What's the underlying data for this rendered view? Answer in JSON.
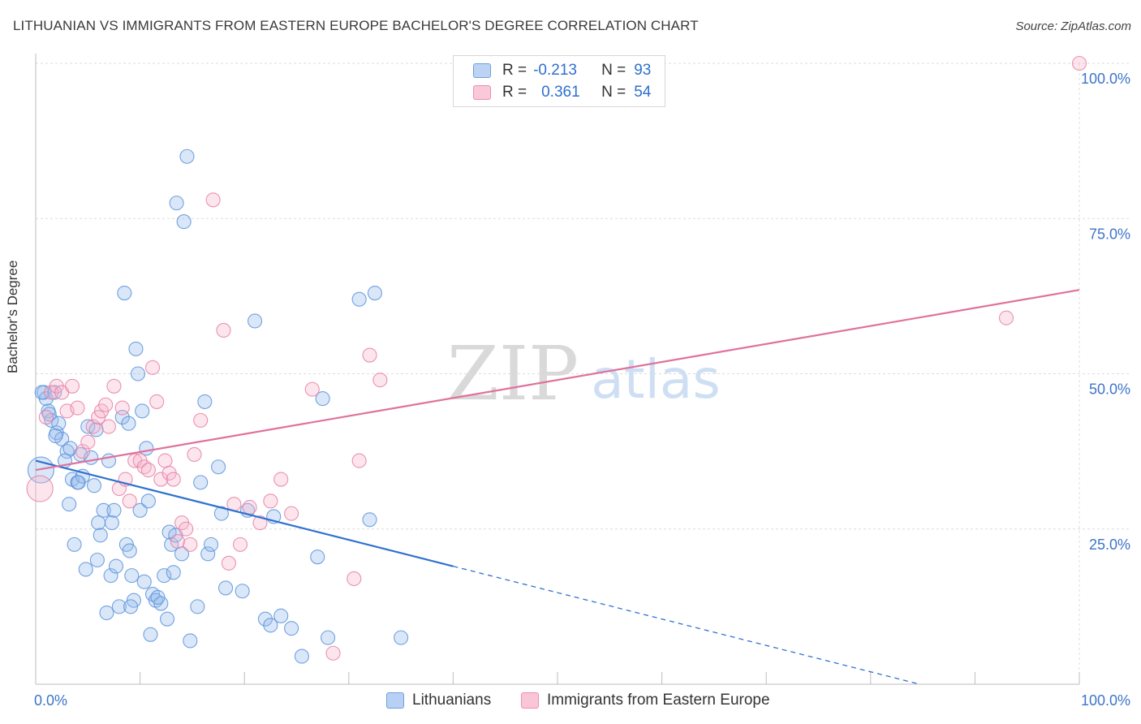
{
  "title": "LITHUANIAN VS IMMIGRANTS FROM EASTERN EUROPE BACHELOR'S DEGREE CORRELATION CHART",
  "source": "Source: ZipAtlas.com",
  "watermark": {
    "zip": "ZIP",
    "atlas": "atlas"
  },
  "legend": {
    "r_label": "R =",
    "n_label": "N =",
    "rows": [
      {
        "r": "-0.213",
        "n": "93",
        "color": "#a9c7ef",
        "border": "#6e9fe0"
      },
      {
        "r": "0.361",
        "n": "54",
        "color": "#f8c0d3",
        "border": "#ee8fb1"
      }
    ]
  },
  "bottom_legend": [
    {
      "label": "Lithuanians",
      "color": "#b7d0f3",
      "border": "#6e9fe0"
    },
    {
      "label": "Immigrants from Eastern Europe",
      "color": "#f8c6d7",
      "border": "#ee8fb1"
    }
  ],
  "chart_data": {
    "type": "scatter",
    "title": "LITHUANIAN VS IMMIGRANTS FROM EASTERN EUROPE BACHELOR'S DEGREE CORRELATION CHART",
    "xlabel": "",
    "ylabel": "Bachelor's Degree",
    "xlim": [
      0,
      100
    ],
    "ylim": [
      0,
      100
    ],
    "x_tick_labels": [
      "0.0%",
      "100.0%"
    ],
    "y_ticks": [
      25,
      50,
      75,
      100
    ],
    "y_tick_labels": [
      "25.0%",
      "50.0%",
      "75.0%",
      "100.0%"
    ],
    "grid": true,
    "series": [
      {
        "name": "Lithuanians",
        "color": "#5b93dc",
        "fill": "rgba(150,186,236,0.35)",
        "trend": {
          "x0": 0,
          "y0": 36.0,
          "x1": 40,
          "y1": 19.0,
          "dash_to_x": 100,
          "color": "#2f72d0"
        },
        "points": [
          [
            0.5,
            34.5
          ],
          [
            0.8,
            47
          ],
          [
            1,
            46
          ],
          [
            1.2,
            44
          ],
          [
            1.5,
            42.5
          ],
          [
            1.8,
            47
          ],
          [
            2,
            40.5
          ],
          [
            2.2,
            42
          ],
          [
            2.5,
            39.5
          ],
          [
            3,
            37.5
          ],
          [
            3.2,
            29
          ],
          [
            3.5,
            33
          ],
          [
            3.7,
            22.5
          ],
          [
            4,
            32.5
          ],
          [
            4.3,
            37
          ],
          [
            4.5,
            33.5
          ],
          [
            4.8,
            18.5
          ],
          [
            5,
            41.5
          ],
          [
            5.3,
            36.5
          ],
          [
            5.6,
            32
          ],
          [
            5.8,
            41
          ],
          [
            6,
            26
          ],
          [
            6.2,
            24
          ],
          [
            6.5,
            28
          ],
          [
            6.8,
            11.5
          ],
          [
            7,
            36
          ],
          [
            7.2,
            17.5
          ],
          [
            7.5,
            28
          ],
          [
            7.7,
            19
          ],
          [
            8,
            12.5
          ],
          [
            8.3,
            43
          ],
          [
            8.5,
            63
          ],
          [
            8.7,
            22.5
          ],
          [
            9,
            21.5
          ],
          [
            9.2,
            17.5
          ],
          [
            9.4,
            13.5
          ],
          [
            9.6,
            54
          ],
          [
            9.8,
            50
          ],
          [
            10,
            28
          ],
          [
            10.2,
            44
          ],
          [
            10.4,
            16.5
          ],
          [
            10.6,
            38
          ],
          [
            10.8,
            29.5
          ],
          [
            11,
            8
          ],
          [
            11.2,
            14.5
          ],
          [
            11.5,
            13.5
          ],
          [
            12,
            13
          ],
          [
            12.3,
            17.5
          ],
          [
            12.6,
            10.5
          ],
          [
            12.8,
            24.5
          ],
          [
            13,
            22.5
          ],
          [
            13.2,
            18
          ],
          [
            13.5,
            77.5
          ],
          [
            14.2,
            74.5
          ],
          [
            14.5,
            85
          ],
          [
            14.8,
            7
          ],
          [
            15.5,
            12.5
          ],
          [
            15.8,
            32.5
          ],
          [
            16.2,
            45.5
          ],
          [
            16.5,
            21
          ],
          [
            16.8,
            22.5
          ],
          [
            17.5,
            35
          ],
          [
            17.8,
            27.5
          ],
          [
            18.2,
            15.5
          ],
          [
            19.8,
            15
          ],
          [
            20.3,
            28
          ],
          [
            21,
            58.5
          ],
          [
            22,
            10.5
          ],
          [
            22.5,
            9.5
          ],
          [
            22.8,
            27
          ],
          [
            23.5,
            11
          ],
          [
            24.5,
            9
          ],
          [
            25.5,
            4.5
          ],
          [
            27,
            20.5
          ],
          [
            27.5,
            46
          ],
          [
            28,
            7.5
          ],
          [
            31,
            62
          ],
          [
            32,
            26.5
          ],
          [
            32.5,
            63
          ],
          [
            35,
            7.5
          ],
          [
            1.3,
            43.5
          ],
          [
            2.8,
            36
          ],
          [
            4.1,
            32.5
          ],
          [
            5.9,
            20
          ],
          [
            7.3,
            26
          ],
          [
            9.1,
            12.5
          ],
          [
            11.7,
            14
          ],
          [
            13.4,
            24
          ],
          [
            14,
            21
          ],
          [
            0.6,
            47
          ],
          [
            1.9,
            40
          ],
          [
            3.3,
            38
          ],
          [
            8.9,
            42
          ]
        ]
      },
      {
        "name": "Immigrants from Eastern Europe",
        "color": "#e880a6",
        "fill": "rgba(245,180,204,0.35)",
        "trend": {
          "x0": 0,
          "y0": 34.5,
          "x1": 100,
          "y1": 63.5,
          "color": "#e0719c"
        },
        "points": [
          [
            0.4,
            31.5
          ],
          [
            1,
            43
          ],
          [
            1.5,
            47
          ],
          [
            2,
            48
          ],
          [
            2.5,
            47
          ],
          [
            3,
            44
          ],
          [
            3.5,
            48
          ],
          [
            4,
            44.5
          ],
          [
            4.5,
            37.5
          ],
          [
            5,
            39
          ],
          [
            5.5,
            41.5
          ],
          [
            6,
            43
          ],
          [
            6.3,
            44
          ],
          [
            6.7,
            45
          ],
          [
            7,
            41.5
          ],
          [
            7.5,
            48
          ],
          [
            8,
            31.5
          ],
          [
            8.3,
            44.5
          ],
          [
            8.6,
            33
          ],
          [
            9,
            29.5
          ],
          [
            9.5,
            36
          ],
          [
            10,
            36
          ],
          [
            10.4,
            35
          ],
          [
            10.8,
            34.5
          ],
          [
            11.2,
            51
          ],
          [
            11.6,
            45.5
          ],
          [
            12,
            33
          ],
          [
            12.4,
            36
          ],
          [
            12.8,
            34
          ],
          [
            13.2,
            33
          ],
          [
            13.6,
            23
          ],
          [
            14,
            26
          ],
          [
            14.4,
            25
          ],
          [
            14.8,
            22.5
          ],
          [
            15.2,
            37
          ],
          [
            15.8,
            42.5
          ],
          [
            17,
            78
          ],
          [
            18,
            57
          ],
          [
            18.5,
            19.5
          ],
          [
            19,
            29
          ],
          [
            19.6,
            22.5
          ],
          [
            20.5,
            28.5
          ],
          [
            21.5,
            26
          ],
          [
            22.5,
            29.5
          ],
          [
            23.5,
            33
          ],
          [
            24.5,
            27.5
          ],
          [
            26.5,
            47.5
          ],
          [
            28.5,
            5
          ],
          [
            30.5,
            17
          ],
          [
            31,
            36
          ],
          [
            32,
            53
          ],
          [
            33,
            49
          ],
          [
            93,
            59
          ],
          [
            100,
            100
          ]
        ]
      }
    ]
  }
}
